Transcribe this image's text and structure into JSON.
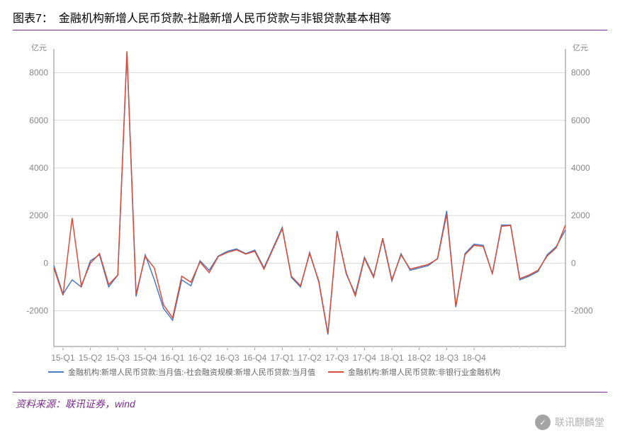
{
  "title_prefix": "图表7：",
  "title": "金融机构新增人民币贷款-社融新增人民币贷款与非银贷款基本相等",
  "source_text": "资料来源：联讯证券，wind",
  "watermark": "联讯麒麟堂",
  "chart": {
    "type": "line",
    "y_unit_left": "亿元",
    "y_unit_right": "亿元",
    "ylim": [
      -3500,
      9000
    ],
    "yticks": [
      -2000,
      0,
      2000,
      4000,
      6000,
      8000
    ],
    "categories": [
      "15-Q1",
      "15-Q2",
      "15-Q3",
      "15-Q4",
      "16-Q1",
      "16-Q2",
      "16-Q3",
      "16-Q4",
      "17-Q1",
      "17-Q2",
      "17-Q3",
      "17-Q4",
      "18-Q1",
      "18-Q2",
      "18-Q3",
      "18-Q4"
    ],
    "x_points_per_category": 3,
    "background_color": "#ffffff",
    "grid_color": "#d9d9d9",
    "axis_color": "#888888",
    "tick_label_color": "#888888",
    "tick_fontsize": 12,
    "unit_fontsize": 11,
    "line_width": 1.5,
    "series": [
      {
        "name": "金融机构:新增人民币贷款:当月值:-社会融资规模:新增人民币贷款:当月值",
        "color": "#4a7cc4",
        "values": [
          -100,
          -1300,
          -700,
          -1000,
          100,
          350,
          -1000,
          -500,
          8850,
          -1400,
          350,
          -700,
          -1900,
          -2400,
          -700,
          -950,
          100,
          -300,
          300,
          500,
          600,
          400,
          550,
          -200,
          650,
          1500,
          -600,
          -1000,
          450,
          -800,
          -3000,
          1350,
          -450,
          -1300,
          250,
          -550,
          1000,
          -750,
          400,
          -300,
          -200,
          -100,
          200,
          2200,
          -1850,
          400,
          800,
          750,
          -450,
          1600,
          1600,
          -700,
          -550,
          -350,
          350,
          700,
          1400
        ]
      },
      {
        "name": "金融机构:新增人民币贷款:非银行业金融机构",
        "color": "#d94c3a",
        "values": [
          -200,
          -1350,
          1900,
          -950,
          0,
          400,
          -900,
          -500,
          8900,
          -1300,
          280,
          -200,
          -1750,
          -2300,
          -550,
          -800,
          50,
          -400,
          280,
          450,
          560,
          380,
          500,
          -250,
          600,
          1450,
          -550,
          -950,
          400,
          -750,
          -2950,
          1300,
          -400,
          -1380,
          200,
          -600,
          1050,
          -700,
          350,
          -250,
          -150,
          -50,
          180,
          2050,
          -1800,
          350,
          750,
          700,
          -430,
          1550,
          1580,
          -650,
          -500,
          -300,
          300,
          650,
          1600
        ]
      }
    ]
  }
}
